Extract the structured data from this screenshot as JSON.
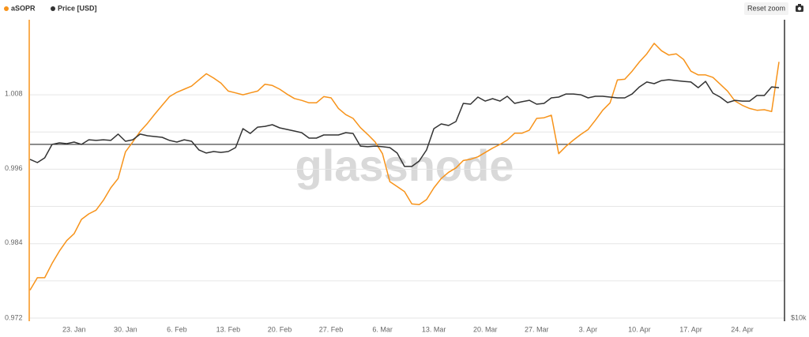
{
  "chart_data": {
    "type": "line",
    "legend": "top-left",
    "reset_button": "Reset zoom",
    "watermark": "glassnode",
    "categories": [
      null,
      null,
      null,
      null,
      null,
      null,
      "23. Jan",
      null,
      null,
      null,
      null,
      null,
      null,
      "30. Jan",
      null,
      null,
      null,
      null,
      null,
      null,
      "6. Feb",
      null,
      null,
      null,
      null,
      null,
      null,
      "13. Feb",
      null,
      null,
      null,
      null,
      null,
      null,
      "20. Feb",
      null,
      null,
      null,
      null,
      null,
      null,
      "27. Feb",
      null,
      null,
      null,
      null,
      null,
      null,
      "6. Mar",
      null,
      null,
      null,
      null,
      null,
      null,
      "13. Mar",
      null,
      null,
      null,
      null,
      null,
      null,
      "20. Mar",
      null,
      null,
      null,
      null,
      null,
      null,
      "27. Mar",
      null,
      null,
      null,
      null,
      null,
      null,
      "3. Apr",
      null,
      null,
      null,
      null,
      null,
      null,
      "10. Apr",
      null,
      null,
      null,
      null,
      null,
      null,
      "17. Apr",
      null,
      null,
      null,
      null,
      null,
      null,
      "24. Apr",
      null,
      null,
      null,
      null,
      null
    ],
    "series": [
      {
        "name": "aSOPR",
        "color": "#f7931a",
        "values": [
          0.9765,
          0.9785,
          0.9785,
          0.9808,
          0.9828,
          0.9845,
          0.9856,
          0.9879,
          0.9888,
          0.9894,
          0.991,
          0.993,
          0.9945,
          0.9988,
          1.0004,
          1.0021,
          1.0034,
          1.0049,
          1.0063,
          1.0077,
          1.0084,
          1.0089,
          1.0094,
          1.0104,
          1.0114,
          1.0107,
          1.0099,
          1.0086,
          1.0083,
          1.008,
          1.0083,
          1.0086,
          1.0097,
          1.0095,
          1.0089,
          1.0081,
          1.0074,
          1.0071,
          1.0067,
          1.0067,
          1.0077,
          1.0075,
          1.0058,
          1.0048,
          1.0042,
          1.0027,
          1.0016,
          1.0004,
          0.9985,
          0.994,
          0.9932,
          0.9924,
          0.9904,
          0.9903,
          0.9911,
          0.993,
          0.9945,
          0.9955,
          0.9962,
          0.9974,
          0.9976,
          0.998,
          0.9987,
          0.9994,
          1.0,
          1.0007,
          1.0018,
          1.0018,
          1.0023,
          1.0042,
          1.0043,
          1.0047,
          0.9985,
          0.9997,
          1.0007,
          1.0016,
          1.0024,
          1.0039,
          1.0055,
          1.0067,
          1.0104,
          1.0105,
          1.0118,
          1.0133,
          1.0146,
          1.0163,
          1.0151,
          1.0144,
          1.0146,
          1.0137,
          1.0118,
          1.0112,
          1.0112,
          1.0108,
          1.0097,
          1.0086,
          1.007,
          1.0063,
          1.0058,
          1.0055,
          1.0056,
          1.0053,
          1.0133
        ]
      },
      {
        "name": "Price [USD]",
        "color": "#333333",
        "axis": "y2",
        "values": [
          23830,
          23550,
          23960,
          25130,
          25270,
          25200,
          25340,
          25130,
          25540,
          25480,
          25540,
          25480,
          26030,
          25410,
          25540,
          26030,
          25890,
          25820,
          25750,
          25480,
          25340,
          25540,
          25410,
          24650,
          24380,
          24510,
          24440,
          24510,
          24860,
          26510,
          26090,
          26640,
          26710,
          26850,
          26580,
          26440,
          26300,
          26160,
          25680,
          25680,
          25960,
          25960,
          25960,
          26160,
          26090,
          24990,
          24930,
          24990,
          24930,
          24860,
          24380,
          23210,
          23210,
          23690,
          24650,
          26510,
          26920,
          26780,
          27130,
          28710,
          28640,
          29260,
          28910,
          29120,
          28910,
          29330,
          28710,
          28850,
          28980,
          28640,
          28710,
          29190,
          29260,
          29530,
          29530,
          29460,
          29190,
          29330,
          29330,
          29260,
          29190,
          29190,
          29530,
          30150,
          30570,
          30430,
          30700,
          30770,
          30700,
          30630,
          30570,
          30080,
          30630,
          29600,
          29260,
          28780,
          28980,
          28910,
          28910,
          29400,
          29400,
          30150,
          30080
        ]
      }
    ],
    "ylim": [
      0.972,
      1.0201
    ],
    "yticks": [
      0.972,
      0.984,
      0.996,
      1.008
    ],
    "ygrid": [
      0.978,
      0.99,
      1.002
    ],
    "reference_line": 1,
    "y2lim": [
      10000,
      36000
    ],
    "y2ticks": [
      {
        "value": 10000,
        "label": "$10k"
      }
    ],
    "grid": true
  }
}
